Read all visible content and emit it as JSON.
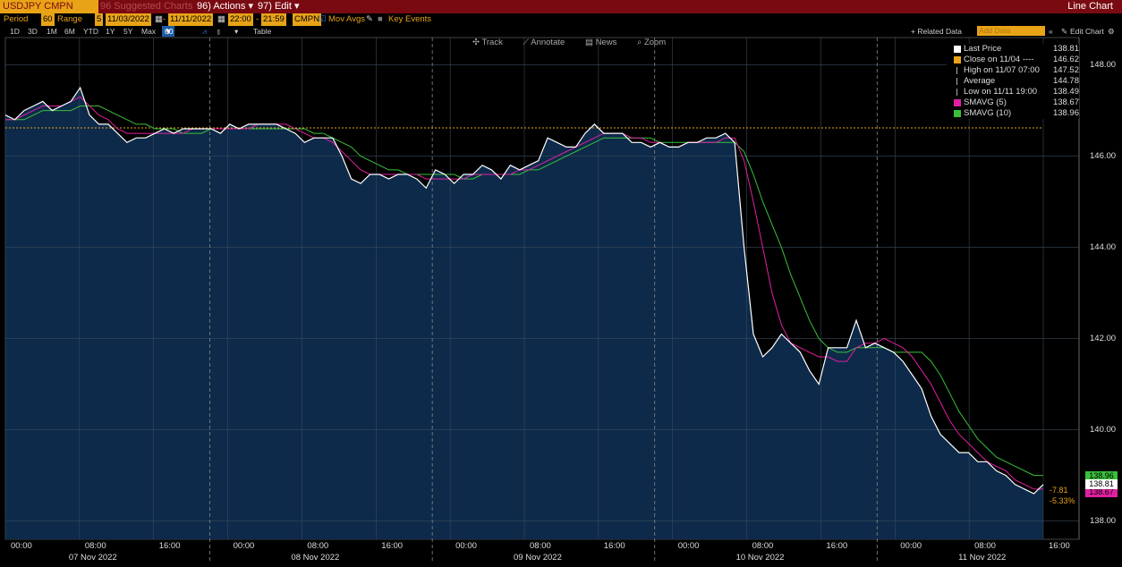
{
  "header": {
    "ticker": "USDJPY CMPN Curnc",
    "suggested": "96 Suggested Charts",
    "actions": "96) Actions",
    "edit": "97) Edit",
    "title": "Line Chart"
  },
  "controls": {
    "period_label": "Period",
    "period_value": "60",
    "range_label": "Range",
    "range_value": "5",
    "date_from": "11/03/2022",
    "date_to": "11/11/2022",
    "time_from": "22:00",
    "time_to": "21:59",
    "source": "CMPN",
    "mov_avgs": "Mov Avgs",
    "key_events": "Key Events",
    "related_data": "+ Related Data",
    "add_data": "Add Data",
    "edit_chart": "Edit Chart"
  },
  "timeframes": [
    "1D",
    "3D",
    "1M",
    "6M",
    "YTD",
    "1Y",
    "5Y",
    "Max"
  ],
  "interval": "60 Min",
  "table_label": "Table",
  "tools": {
    "track": "Track",
    "annotate": "Annotate",
    "news": "News",
    "zoom": "Zoom"
  },
  "legend": [
    {
      "label": "Last Price",
      "value": "138.81",
      "color": "#ffffff"
    },
    {
      "label": "Close on 11/04 ----",
      "value": "146.62",
      "color": "#e8a317"
    },
    {
      "label": "High on 11/07 07:00",
      "value": "147.52",
      "color": "#aaaaaa"
    },
    {
      "label": "Average",
      "value": "144.78",
      "color": "#aaaaaa"
    },
    {
      "label": "Low on 11/11 19:00",
      "value": "138.49",
      "color": "#aaaaaa"
    },
    {
      "label": "SMAVG (5)",
      "value": "138.67",
      "color": "#e020a0"
    },
    {
      "label": "SMAVG (10)",
      "value": "138.96",
      "color": "#3bbf3b"
    }
  ],
  "price_tags": {
    "last": "138.81",
    "sma10": "138.96",
    "sma5": "138.67"
  },
  "change": {
    "abs": "-7.81",
    "pct": "-5.33%"
  },
  "chart_data": {
    "type": "line",
    "ylim": [
      137.6,
      148.6
    ],
    "yticks": [
      "148.00",
      "146.00",
      "144.00",
      "142.00",
      "140.00",
      "138.00"
    ],
    "x_time_labels": [
      "00:00",
      "08:00",
      "16:00",
      "00:00",
      "08:00",
      "16:00",
      "00:00",
      "08:00",
      "16:00",
      "00:00",
      "08:00",
      "16:00",
      "00:00",
      "08:00",
      "16:00"
    ],
    "x_date_labels": [
      "07 Nov 2022",
      "08 Nov 2022",
      "09 Nov 2022",
      "10 Nov 2022",
      "11 Nov 2022"
    ],
    "reference_line": 146.62,
    "series": [
      {
        "name": "Last Price",
        "color": "#ffffff",
        "values": [
          146.9,
          146.8,
          147.0,
          147.1,
          147.2,
          147.0,
          147.1,
          147.2,
          147.5,
          146.9,
          146.7,
          146.7,
          146.5,
          146.3,
          146.4,
          146.4,
          146.5,
          146.6,
          146.5,
          146.6,
          146.6,
          146.6,
          146.6,
          146.5,
          146.7,
          146.6,
          146.7,
          146.7,
          146.7,
          146.7,
          146.6,
          146.5,
          146.3,
          146.4,
          146.4,
          146.4,
          146.0,
          145.5,
          145.4,
          145.6,
          145.6,
          145.5,
          145.6,
          145.6,
          145.5,
          145.3,
          145.7,
          145.6,
          145.4,
          145.6,
          145.6,
          145.8,
          145.7,
          145.5,
          145.8,
          145.7,
          145.8,
          145.9,
          146.4,
          146.3,
          146.2,
          146.2,
          146.5,
          146.7,
          146.5,
          146.5,
          146.5,
          146.3,
          146.3,
          146.2,
          146.3,
          146.2,
          146.2,
          146.3,
          146.3,
          146.4,
          146.4,
          146.5,
          146.3,
          144.0,
          142.1,
          141.6,
          141.8,
          142.1,
          141.9,
          141.7,
          141.3,
          141.0,
          141.8,
          141.8,
          141.8,
          142.4,
          141.8,
          141.9,
          141.8,
          141.7,
          141.5,
          141.2,
          140.9,
          140.3,
          139.9,
          139.7,
          139.5,
          139.5,
          139.3,
          139.3,
          139.1,
          139.0,
          138.8,
          138.7,
          138.6,
          138.8
        ]
      },
      {
        "name": "SMAVG (5)",
        "color": "#e020a0",
        "values": [
          146.8,
          146.8,
          146.9,
          147.0,
          147.1,
          147.1,
          147.1,
          147.2,
          147.3,
          147.1,
          146.9,
          146.8,
          146.6,
          146.5,
          146.5,
          146.5,
          146.5,
          146.5,
          146.5,
          146.5,
          146.6,
          146.6,
          146.6,
          146.6,
          146.6,
          146.6,
          146.6,
          146.7,
          146.7,
          146.7,
          146.7,
          146.6,
          146.5,
          146.4,
          146.4,
          146.3,
          146.1,
          145.9,
          145.7,
          145.6,
          145.6,
          145.6,
          145.6,
          145.6,
          145.6,
          145.5,
          145.5,
          145.5,
          145.5,
          145.5,
          145.6,
          145.6,
          145.6,
          145.6,
          145.6,
          145.7,
          145.7,
          145.8,
          145.9,
          146.0,
          146.1,
          146.2,
          146.3,
          146.4,
          146.5,
          146.5,
          146.5,
          146.4,
          146.4,
          146.3,
          146.3,
          146.2,
          146.2,
          146.3,
          146.3,
          146.3,
          146.3,
          146.4,
          146.4,
          145.9,
          145.0,
          144.0,
          143.0,
          142.3,
          141.9,
          141.8,
          141.7,
          141.6,
          141.6,
          141.5,
          141.5,
          141.8,
          141.9,
          141.9,
          142.0,
          141.9,
          141.8,
          141.6,
          141.3,
          141.0,
          140.6,
          140.2,
          139.9,
          139.7,
          139.5,
          139.3,
          139.2,
          139.1,
          138.9,
          138.8,
          138.7,
          138.7
        ]
      },
      {
        "name": "SMAVG (10)",
        "color": "#3bbf3b",
        "values": [
          146.8,
          146.8,
          146.8,
          146.9,
          147.0,
          147.0,
          147.0,
          147.0,
          147.1,
          147.1,
          147.1,
          147.0,
          146.9,
          146.8,
          146.7,
          146.7,
          146.6,
          146.6,
          146.6,
          146.5,
          146.5,
          146.5,
          146.6,
          146.6,
          146.6,
          146.6,
          146.6,
          146.6,
          146.6,
          146.6,
          146.6,
          146.6,
          146.6,
          146.5,
          146.5,
          146.4,
          146.3,
          146.2,
          146.0,
          145.9,
          145.8,
          145.7,
          145.7,
          145.6,
          145.6,
          145.6,
          145.6,
          145.6,
          145.6,
          145.5,
          145.5,
          145.6,
          145.6,
          145.6,
          145.6,
          145.6,
          145.7,
          145.7,
          145.8,
          145.9,
          146.0,
          146.1,
          146.2,
          146.3,
          146.4,
          146.4,
          146.4,
          146.4,
          146.4,
          146.4,
          146.3,
          146.3,
          146.3,
          146.3,
          146.3,
          146.3,
          146.3,
          146.3,
          146.3,
          146.1,
          145.6,
          145.0,
          144.5,
          144.0,
          143.4,
          142.9,
          142.4,
          142.0,
          141.8,
          141.7,
          141.7,
          141.8,
          141.8,
          141.8,
          141.8,
          141.7,
          141.7,
          141.7,
          141.7,
          141.5,
          141.2,
          140.8,
          140.4,
          140.1,
          139.8,
          139.6,
          139.4,
          139.3,
          139.2,
          139.1,
          139.0,
          139.0
        ]
      }
    ]
  }
}
